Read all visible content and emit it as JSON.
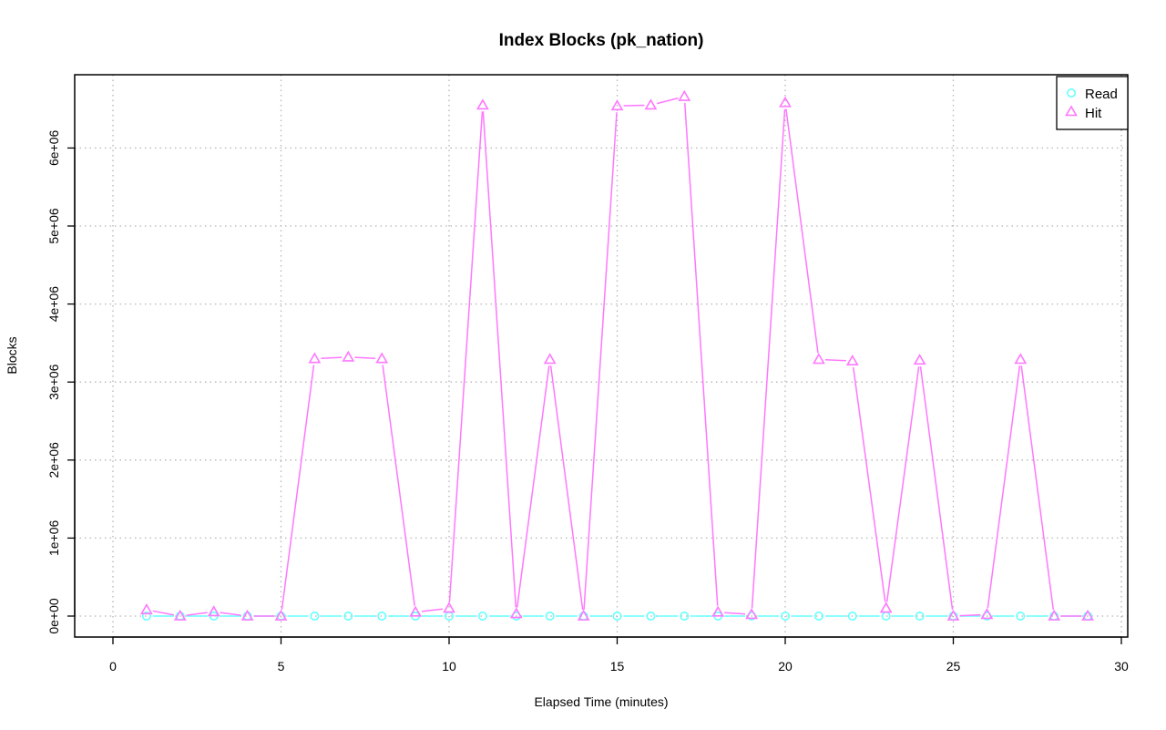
{
  "chart_data": {
    "type": "line",
    "title": "Index Blocks (pk_nation)",
    "xlabel": "Elapsed Time (minutes)",
    "ylabel": "Blocks",
    "xlim": [
      0,
      30
    ],
    "ylim": [
      0,
      6700000
    ],
    "xticks": [
      0,
      5,
      10,
      15,
      20,
      25,
      30
    ],
    "yticks": [
      0,
      1000000,
      2000000,
      3000000,
      4000000,
      5000000,
      6000000
    ],
    "yticklabels": [
      "0e+00",
      "1e+06",
      "2e+06",
      "3e+06",
      "4e+06",
      "5e+06",
      "6e+06"
    ],
    "grid": true,
    "legend_position": "top-right",
    "x": [
      1,
      2,
      3,
      4,
      5,
      6,
      7,
      8,
      9,
      10,
      11,
      12,
      13,
      14,
      15,
      16,
      17,
      18,
      19,
      20,
      21,
      22,
      23,
      24,
      25,
      26,
      27,
      28,
      29
    ],
    "series": [
      {
        "name": "Read",
        "color": "#66ffff",
        "marker": "circle",
        "values": [
          0,
          0,
          0,
          0,
          0,
          0,
          0,
          0,
          0,
          0,
          0,
          0,
          0,
          0,
          0,
          0,
          0,
          0,
          0,
          0,
          0,
          0,
          0,
          0,
          0,
          0,
          0,
          0,
          0
        ]
      },
      {
        "name": "Hit",
        "color": "#ff77ff",
        "marker": "triangle",
        "values": [
          80000,
          0,
          55000,
          0,
          0,
          3300000,
          3320000,
          3300000,
          50000,
          100000,
          6550000,
          30000,
          3290000,
          0,
          6540000,
          6550000,
          6660000,
          50000,
          20000,
          6580000,
          3290000,
          3270000,
          100000,
          3280000,
          0,
          20000,
          3290000,
          0,
          0
        ]
      }
    ]
  }
}
